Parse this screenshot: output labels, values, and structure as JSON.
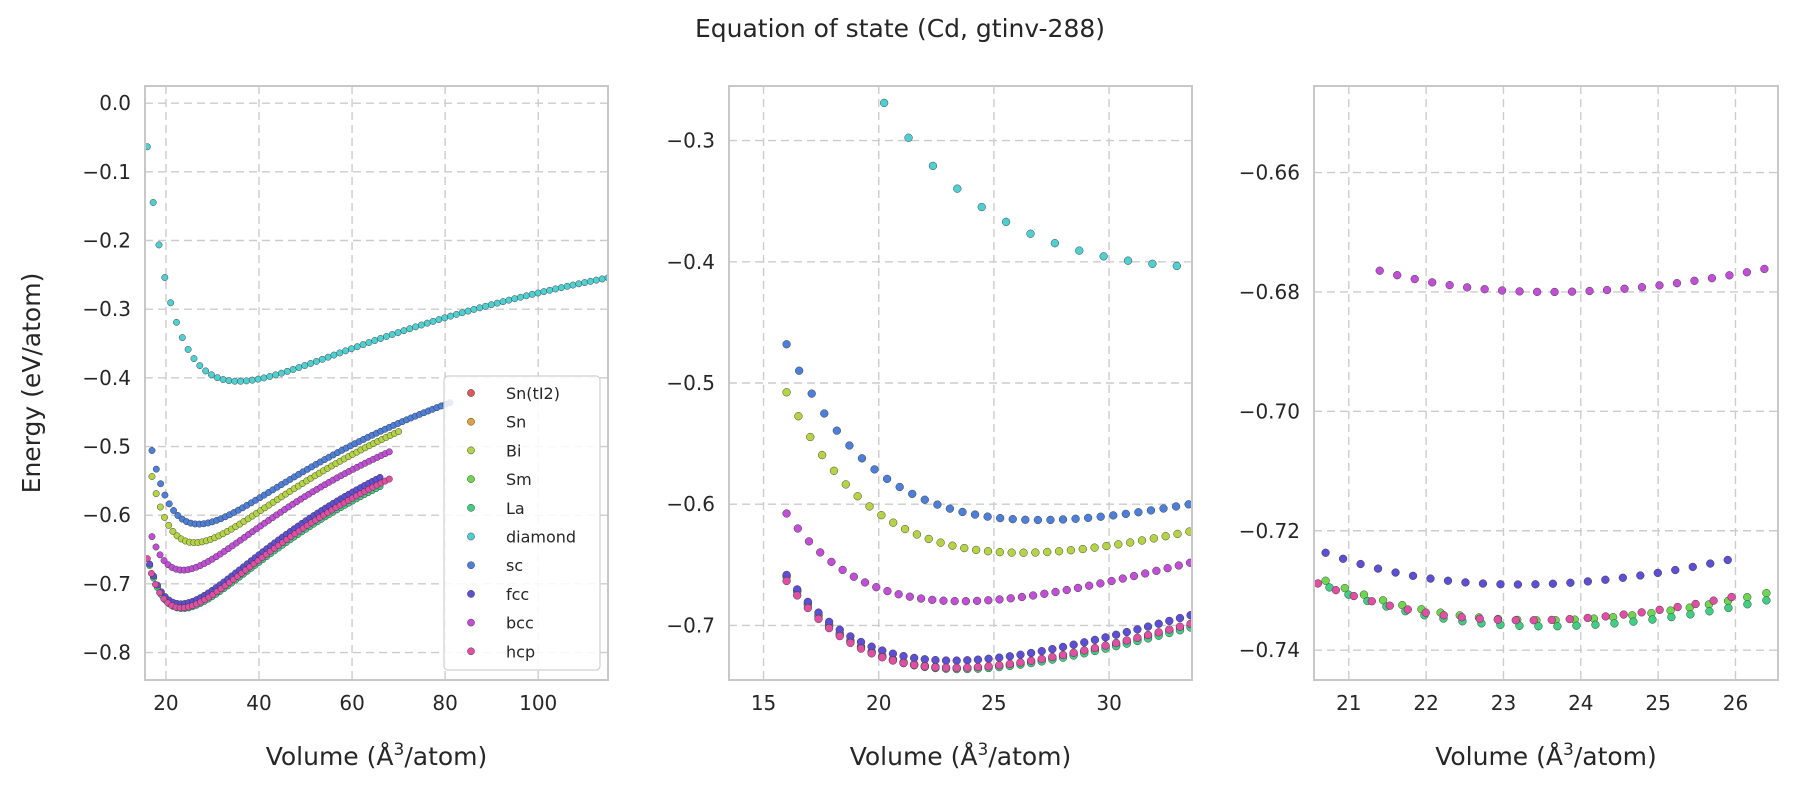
{
  "title": "Equation of state (Cd, gtinv-288)",
  "colors": {
    "Sn(tI2)": "#e0565b",
    "Sn": "#e2a03a",
    "Bi": "#b5d445",
    "Sm": "#6fd64f",
    "La": "#3fce82",
    "diamond": "#4fcfd0",
    "sc": "#4d7fd8",
    "fcc": "#5d4fd3",
    "bcc": "#c04fd6",
    "hcp": "#e04fa4"
  },
  "chart_data": [
    {
      "type": "scatter",
      "xlabel": "Volume ($\\mathrm{\\AA}^3$/atom)",
      "ylabel": "Energy (eV/atom)",
      "xlim": [
        15.5,
        115
      ],
      "ylim": [
        -0.84,
        0.025
      ],
      "xticks": [
        20,
        40,
        60,
        80,
        100
      ],
      "yticks": [
        0.0,
        -0.1,
        -0.2,
        -0.3,
        -0.4,
        -0.5,
        -0.6,
        -0.7,
        -0.8
      ],
      "legend_position": "lower-right",
      "legend": [
        "Sn(tI2)",
        "Sn",
        "Bi",
        "Sm",
        "La",
        "diamond",
        "sc",
        "fcc",
        "bcc",
        "hcp"
      ],
      "grid": true,
      "series": [
        {
          "name": "diamond",
          "curve": {
            "v0": 35.5,
            "e0": -0.405,
            "b": 0.0148,
            "bp": 4.5,
            "vmin": 16.0,
            "vmax": 115.0,
            "n": 80
          }
        },
        {
          "name": "sc",
          "curve": {
            "v0": 27.0,
            "e0": -0.613,
            "b": 0.0248,
            "bp": 4.5,
            "vmin": 17.0,
            "vmax": 81.0,
            "n": 70
          }
        },
        {
          "name": "Bi",
          "curve": {
            "v0": 26.2,
            "e0": -0.64,
            "b": 0.027,
            "bp": 4.5,
            "vmin": 17.0,
            "vmax": 70.0,
            "n": 60
          }
        },
        {
          "name": "bcc",
          "curve": {
            "v0": 23.6,
            "e0": -0.68,
            "b": 0.029,
            "bp": 4.5,
            "vmin": 17.0,
            "vmax": 68.0,
            "n": 60
          }
        },
        {
          "name": "Sm",
          "curve": {
            "v0": 23.5,
            "e0": -0.735,
            "b": 0.0315,
            "bp": 4.5,
            "vmin": 16.5,
            "vmax": 66.0,
            "n": 60
          }
        },
        {
          "name": "La",
          "curve": {
            "v0": 23.55,
            "e0": -0.736,
            "b": 0.031,
            "bp": 4.5,
            "vmin": 16.5,
            "vmax": 66.0,
            "n": 60
          }
        },
        {
          "name": "fcc",
          "curve": {
            "v0": 23.2,
            "e0": -0.729,
            "b": 0.032,
            "bp": 4.5,
            "vmin": 16.5,
            "vmax": 66.0,
            "n": 60
          }
        },
        {
          "name": "hcp",
          "curve": {
            "v0": 23.3,
            "e0": -0.735,
            "b": 0.0315,
            "bp": 4.5,
            "vmin": 16.0,
            "vmax": 68.0,
            "n": 60
          }
        }
      ]
    },
    {
      "type": "scatter",
      "xlabel": "Volume ($\\mathrm{\\AA}^3$/atom)",
      "xlim": [
        13.5,
        33.6
      ],
      "ylim": [
        -0.745,
        -0.255
      ],
      "xticks": [
        15,
        20,
        25,
        30
      ],
      "yticks": [
        -0.3,
        -0.4,
        -0.5,
        -0.6,
        -0.7
      ],
      "grid": true,
      "series": [
        {
          "name": "diamond",
          "curve": {
            "v0": 35.5,
            "e0": -0.405,
            "b": 0.0148,
            "bp": 4.5,
            "vmin": 16.0,
            "vmax": 34.0,
            "n": 18
          }
        },
        {
          "name": "sc",
          "curve": {
            "v0": 27.0,
            "e0": -0.613,
            "b": 0.0248,
            "bp": 4.5,
            "vmin": 16.0,
            "vmax": 34.0,
            "n": 34
          }
        },
        {
          "name": "Bi",
          "curve": {
            "v0": 26.2,
            "e0": -0.64,
            "b": 0.027,
            "bp": 4.5,
            "vmin": 16.0,
            "vmax": 34.0,
            "n": 36
          }
        },
        {
          "name": "bcc",
          "curve": {
            "v0": 23.6,
            "e0": -0.68,
            "b": 0.029,
            "bp": 4.5,
            "vmin": 16.0,
            "vmax": 34.0,
            "n": 38
          }
        },
        {
          "name": "Sm",
          "curve": {
            "v0": 23.5,
            "e0": -0.735,
            "b": 0.0315,
            "bp": 4.5,
            "vmin": 16.0,
            "vmax": 34.0,
            "n": 40
          }
        },
        {
          "name": "La",
          "curve": {
            "v0": 23.55,
            "e0": -0.736,
            "b": 0.031,
            "bp": 4.5,
            "vmin": 16.0,
            "vmax": 34.0,
            "n": 40
          }
        },
        {
          "name": "fcc",
          "curve": {
            "v0": 23.2,
            "e0": -0.729,
            "b": 0.032,
            "bp": 4.5,
            "vmin": 16.0,
            "vmax": 34.0,
            "n": 40
          }
        },
        {
          "name": "hcp",
          "curve": {
            "v0": 23.3,
            "e0": -0.735,
            "b": 0.0315,
            "bp": 4.5,
            "vmin": 16.0,
            "vmax": 34.0,
            "n": 40
          }
        }
      ]
    },
    {
      "type": "scatter",
      "xlabel": "Volume ($\\mathrm{\\AA}^3$/atom)",
      "xlim": [
        20.55,
        26.55
      ],
      "ylim": [
        -0.745,
        -0.6455
      ],
      "xticks": [
        21,
        22,
        23,
        24,
        25,
        26
      ],
      "yticks": [
        -0.66,
        -0.68,
        -0.7,
        -0.72,
        -0.74
      ],
      "grid": true,
      "series": [
        {
          "name": "bcc",
          "curve": {
            "v0": 23.6,
            "e0": -0.68,
            "b": 0.029,
            "bp": 4.5,
            "vmin": 21.4,
            "vmax": 26.6,
            "n": 24
          }
        },
        {
          "name": "Sm",
          "curve": {
            "v0": 23.5,
            "e0": -0.735,
            "b": 0.0315,
            "bp": 4.5,
            "vmin": 20.7,
            "vmax": 26.4,
            "n": 24
          }
        },
        {
          "name": "La",
          "curve": {
            "v0": 23.55,
            "e0": -0.736,
            "b": 0.031,
            "bp": 4.5,
            "vmin": 20.75,
            "vmax": 26.4,
            "n": 24
          }
        },
        {
          "name": "fcc",
          "curve": {
            "v0": 23.2,
            "e0": -0.729,
            "b": 0.032,
            "bp": 4.5,
            "vmin": 20.7,
            "vmax": 25.9,
            "n": 24
          }
        },
        {
          "name": "hcp",
          "curve": {
            "v0": 23.3,
            "e0": -0.735,
            "b": 0.0315,
            "bp": 4.5,
            "vmin": 20.6,
            "vmax": 25.95,
            "n": 24
          }
        }
      ]
    }
  ]
}
